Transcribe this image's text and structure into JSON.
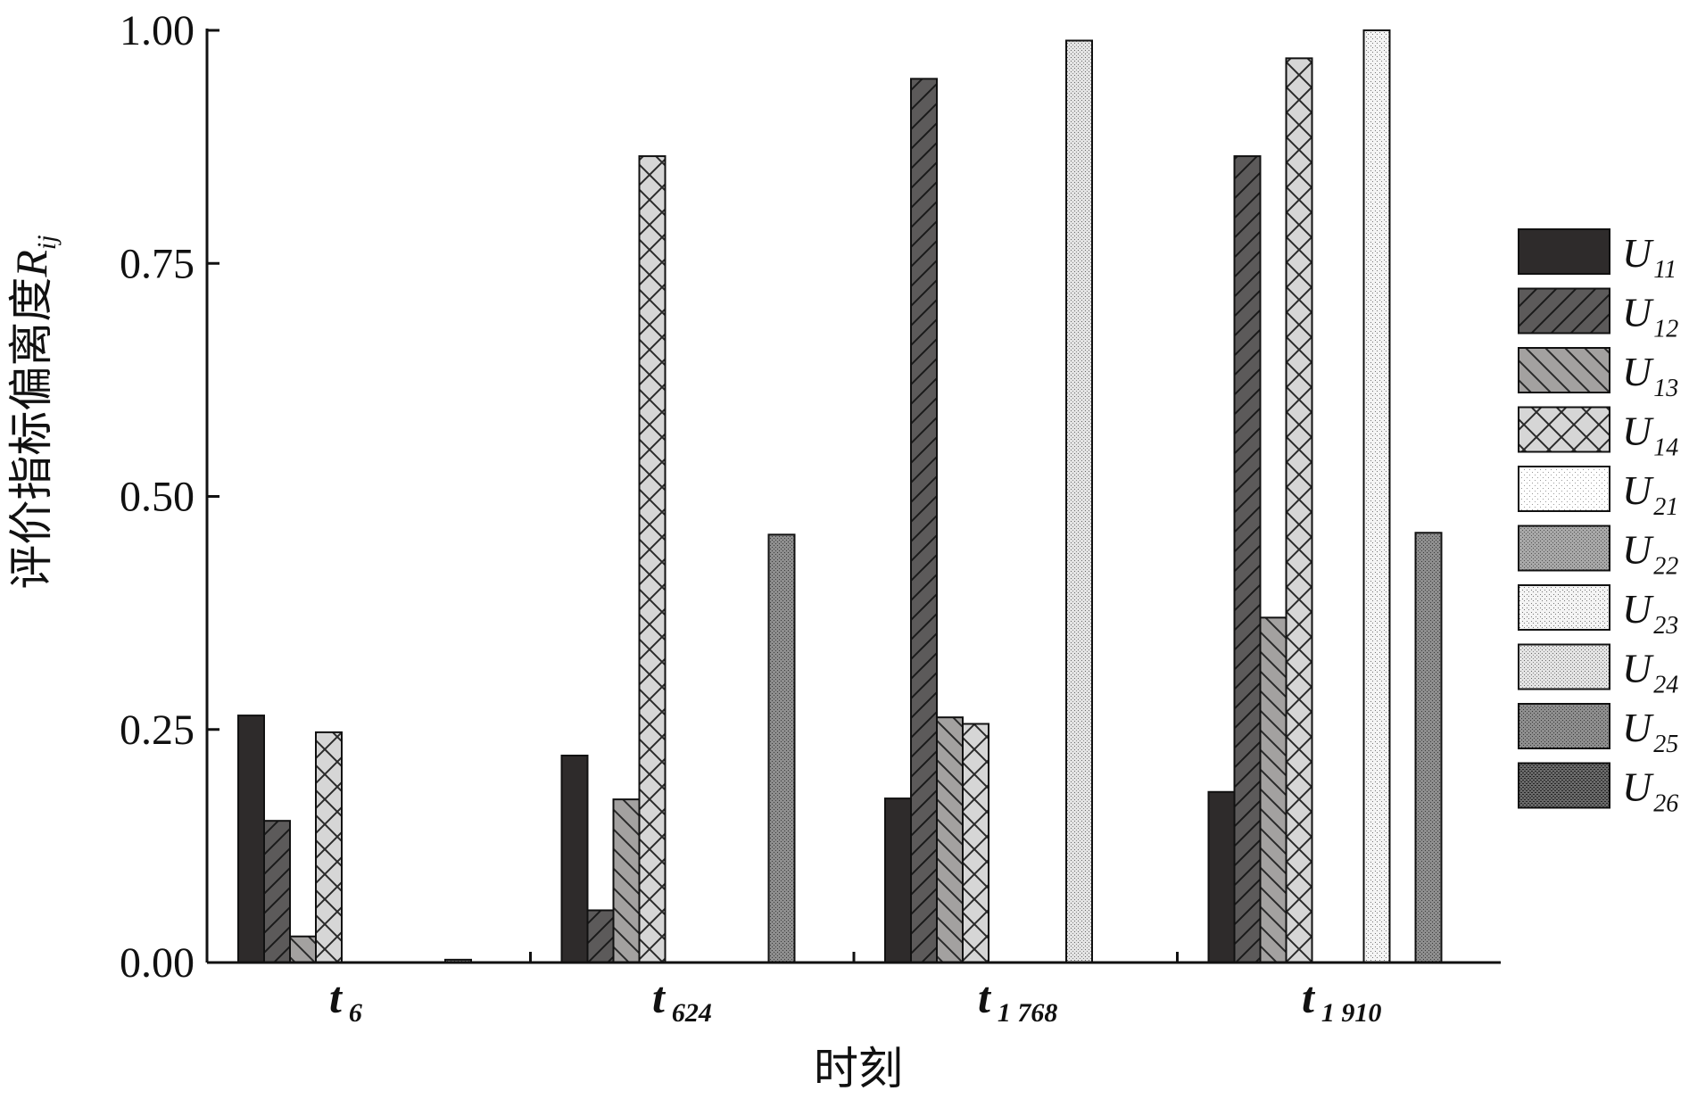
{
  "chart_data": {
    "type": "bar",
    "title": "",
    "ylabel": "评价指标偏离度",
    "ylabel_symbol": "R",
    "ylabel_symbol_sub": "ij",
    "xlabel": "时刻",
    "ylim": [
      0,
      1
    ],
    "yticks": [
      "0.00",
      "0.25",
      "0.50",
      "0.75",
      "1.00"
    ],
    "categories": [
      {
        "main": "t",
        "sub": "6"
      },
      {
        "main": "t",
        "sub": "624"
      },
      {
        "main": "t",
        "sub": "1 768"
      },
      {
        "main": "t",
        "sub": "1 910"
      }
    ],
    "legend_position": "right",
    "series": [
      {
        "name": "U",
        "sub": "11",
        "pattern": "solid-dark",
        "values": [
          0.265,
          0.222,
          0.176,
          0.183
        ]
      },
      {
        "name": "U",
        "sub": "12",
        "pattern": "diag-dark",
        "values": [
          0.152,
          0.056,
          0.948,
          0.865
        ]
      },
      {
        "name": "U",
        "sub": "13",
        "pattern": "backdiag-mid",
        "values": [
          0.028,
          0.175,
          0.263,
          0.37
        ]
      },
      {
        "name": "U",
        "sub": "14",
        "pattern": "cross-light",
        "values": [
          0.247,
          0.865,
          0.256,
          0.97
        ]
      },
      {
        "name": "U",
        "sub": "21",
        "pattern": "dots-white",
        "values": [
          0,
          0,
          0,
          0
        ]
      },
      {
        "name": "U",
        "sub": "22",
        "pattern": "dots-mid",
        "values": [
          0,
          0,
          0,
          0
        ]
      },
      {
        "name": "U",
        "sub": "23",
        "pattern": "dots-white2",
        "values": [
          0,
          0,
          0,
          1.0
        ]
      },
      {
        "name": "U",
        "sub": "24",
        "pattern": "dots-light",
        "values": [
          0,
          0,
          0.989,
          0
        ]
      },
      {
        "name": "U",
        "sub": "25",
        "pattern": "dots-gray",
        "values": [
          0.003,
          0.459,
          0,
          0.461
        ]
      },
      {
        "name": "U",
        "sub": "26",
        "pattern": "dots-dark",
        "values": [
          0,
          0,
          0,
          0
        ]
      }
    ]
  }
}
